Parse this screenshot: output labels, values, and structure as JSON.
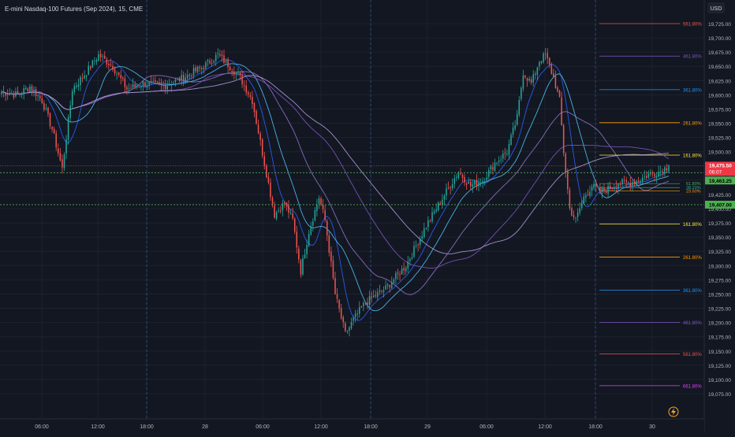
{
  "header": {
    "title": "E-mini Nasdaq-100 Futures (Sep 2024), 15, CME"
  },
  "currency": "USD",
  "colors": {
    "bg": "#131722",
    "grid": "#1e222d",
    "up": "#26a69a",
    "down": "#ef5350",
    "axis_text": "#b2b5be",
    "price_line": "#ef5350",
    "green_level": "#4caf50",
    "session_line": "#2a4a7a"
  },
  "badges": {
    "current_price": "19,475.50",
    "countdown": "06:07",
    "level_upper": "19,463.25",
    "level_lower": "19,407.00"
  },
  "chart_data": {
    "type": "candlestick",
    "ylim": [
      19062,
      19740
    ],
    "yticks": [
      "19,725.00",
      "19,700.00",
      "19,675.00",
      "19,650.00",
      "19,625.00",
      "19,600.00",
      "19,575.00",
      "19,550.00",
      "19,525.00",
      "19,500.00",
      "19,475.00",
      "19,450.00",
      "19,425.00",
      "19,400.00",
      "19,375.00",
      "19,350.00",
      "19,325.00",
      "19,300.00",
      "19,275.00",
      "19,250.00",
      "19,225.00",
      "19,200.00",
      "19,175.00",
      "19,150.00",
      "19,125.00",
      "19,100.00",
      "19,075.00"
    ],
    "xticks": [
      "06:00",
      "12:00",
      "18:00",
      "28",
      "06:00",
      "12:00",
      "18:00",
      "29",
      "06:00",
      "12:00",
      "18:00",
      "30"
    ],
    "close_keypoints": [
      [
        0,
        19605
      ],
      [
        8,
        19600
      ],
      [
        14,
        19615
      ],
      [
        20,
        19590
      ],
      [
        25,
        19540
      ],
      [
        30,
        19470
      ],
      [
        35,
        19610
      ],
      [
        42,
        19640
      ],
      [
        48,
        19670
      ],
      [
        55,
        19650
      ],
      [
        62,
        19610
      ],
      [
        70,
        19620
      ],
      [
        80,
        19615
      ],
      [
        90,
        19630
      ],
      [
        100,
        19650
      ],
      [
        107,
        19670
      ],
      [
        113,
        19650
      ],
      [
        118,
        19630
      ],
      [
        124,
        19590
      ],
      [
        130,
        19480
      ],
      [
        135,
        19390
      ],
      [
        140,
        19410
      ],
      [
        144,
        19380
      ],
      [
        148,
        19290
      ],
      [
        152,
        19360
      ],
      [
        157,
        19420
      ],
      [
        160,
        19380
      ],
      [
        165,
        19250
      ],
      [
        170,
        19180
      ],
      [
        175,
        19210
      ],
      [
        180,
        19235
      ],
      [
        190,
        19260
      ],
      [
        200,
        19300
      ],
      [
        210,
        19370
      ],
      [
        220,
        19430
      ],
      [
        226,
        19465
      ],
      [
        232,
        19440
      ],
      [
        238,
        19450
      ],
      [
        244,
        19480
      ],
      [
        250,
        19500
      ],
      [
        255,
        19560
      ],
      [
        258,
        19640
      ],
      [
        262,
        19620
      ],
      [
        266,
        19660
      ],
      [
        269,
        19670
      ],
      [
        273,
        19630
      ],
      [
        276,
        19590
      ],
      [
        278,
        19500
      ],
      [
        281,
        19400
      ],
      [
        284,
        19380
      ],
      [
        288,
        19420
      ],
      [
        292,
        19440
      ],
      [
        296,
        19430
      ],
      [
        300,
        19435
      ],
      [
        305,
        19445
      ],
      [
        310,
        19445
      ],
      [
        315,
        19450
      ],
      [
        320,
        19460
      ],
      [
        325,
        19465
      ],
      [
        330,
        19475
      ]
    ],
    "moving_averages": [
      {
        "color": "#2962ff",
        "period": 10
      },
      {
        "color": "#4fc3f7",
        "period": 20
      },
      {
        "color": "#9575cd",
        "period": 40
      },
      {
        "color": "#7e57c2",
        "period": 70
      },
      {
        "color": "#b39ddb",
        "period": 90
      }
    ],
    "fib_levels": [
      {
        "label": "561.80%",
        "price": 19725,
        "color": "#ef5350",
        "side": "upper"
      },
      {
        "label": "461.80%",
        "price": 19668,
        "color": "#7e57c2",
        "side": "upper"
      },
      {
        "label": "361.80%",
        "price": 19609,
        "color": "#2196f3",
        "side": "upper"
      },
      {
        "label": "261.80%",
        "price": 19551,
        "color": "#ff9800",
        "side": "upper"
      },
      {
        "label": "161.80%",
        "price": 19494,
        "color": "#ffeb3b",
        "side": "upper"
      },
      {
        "label": "161.80%",
        "price": 19373,
        "color": "#ffeb3b",
        "side": "lower"
      },
      {
        "label": "261.80%",
        "price": 19315,
        "color": "#ff9800",
        "side": "lower"
      },
      {
        "label": "361.80%",
        "price": 19257,
        "color": "#2196f3",
        "side": "lower"
      },
      {
        "label": "461.80%",
        "price": 19200,
        "color": "#7e57c2",
        "side": "lower"
      },
      {
        "label": "561.80%",
        "price": 19145,
        "color": "#ef5350",
        "side": "lower"
      },
      {
        "label": "661.80%",
        "price": 19089,
        "color": "#e040fb",
        "side": "lower"
      }
    ],
    "inner_fib_labels": [
      {
        "label": "61.80%",
        "price": 19444,
        "color": "#4caf50"
      },
      {
        "label": "38.20%",
        "price": 19437,
        "color": "#26a69a"
      },
      {
        "label": "23.60%",
        "price": 19431,
        "color": "#ff9800"
      }
    ],
    "price_levels": {
      "current": 19475.5,
      "upper": 19463.25,
      "lower": 19407.0
    }
  }
}
